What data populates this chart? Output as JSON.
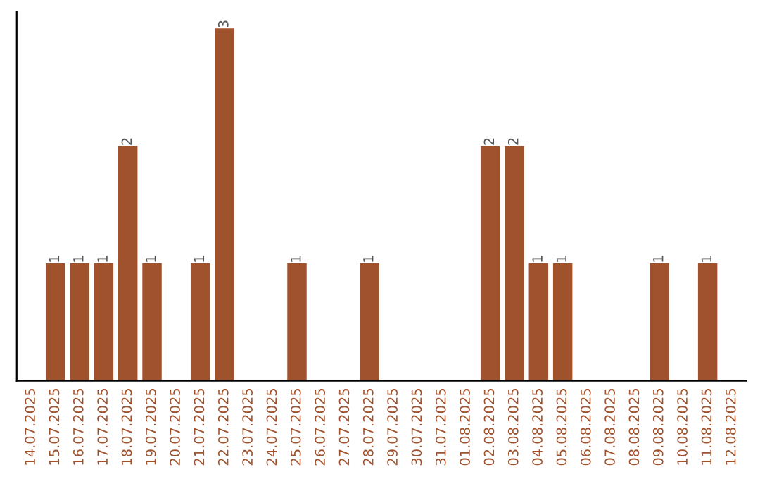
{
  "chart_data": {
    "type": "bar",
    "categories": [
      "14.07.2025",
      "15.07.2025",
      "16.07.2025",
      "17.07.2025",
      "18.07.2025",
      "19.07.2025",
      "20.07.2025",
      "21.07.2025",
      "22.07.2025",
      "23.07.2025",
      "24.07.2025",
      "25.07.2025",
      "26.07.2025",
      "27.07.2025",
      "28.07.2025",
      "29.07.2025",
      "30.07.2025",
      "31.07.2025",
      "01.08.2025",
      "02.08.2025",
      "03.08.2025",
      "04.08.2025",
      "05.08.2025",
      "06.08.2025",
      "07.08.2025",
      "08.08.2025",
      "09.08.2025",
      "10.08.2025",
      "11.08.2025",
      "12.08.2025"
    ],
    "values": [
      0,
      1,
      1,
      1,
      2,
      1,
      0,
      1,
      3,
      0,
      0,
      1,
      0,
      0,
      1,
      0,
      0,
      0,
      0,
      2,
      2,
      1,
      1,
      0,
      0,
      0,
      1,
      0,
      1,
      0
    ],
    "value_labels": [
      null,
      "1",
      "1",
      "1",
      "2",
      "1",
      null,
      "1",
      "3",
      null,
      null,
      "1",
      null,
      null,
      "1",
      null,
      null,
      null,
      null,
      "2",
      "2",
      "1",
      "1",
      null,
      null,
      null,
      "1",
      null,
      "1",
      null
    ],
    "color": "#a0522d",
    "ylim": [
      0,
      3.14
    ],
    "tick_labels": "x",
    "grid": false,
    "legend": false
  }
}
